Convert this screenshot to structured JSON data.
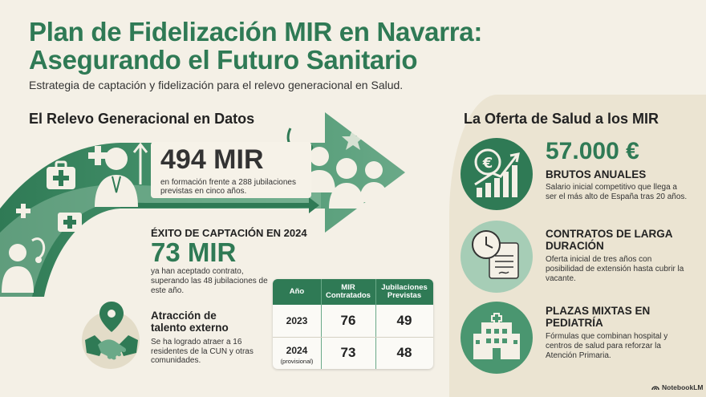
{
  "header": {
    "title_line1": "Plan de Fidelización MIR en Navarra:",
    "title_line2": "Asegurando el Futuro Sanitario",
    "subtitle": "Estrategia de captación y fidelización para el relevo generacional en Salud."
  },
  "left": {
    "section_title": "El Relevo Generacional en Datos",
    "stat1": {
      "value": "494 MIR",
      "desc": "en formación frente a 288 jubilaciones previstas en cinco años."
    },
    "stat2": {
      "heading": "ÉXITO DE CAPTACIÓN EN 2024",
      "value": "73 MIR",
      "desc": "ya han aceptado contrato, superando las 48 jubilaciones de este año."
    },
    "talent": {
      "title": "Atracción de talento externo",
      "desc": "Se ha logrado atraer a 16 residentes de la CUN y otras comunidades."
    },
    "table": {
      "headers": [
        "Año",
        "MIR Contratados",
        "Jubilaciones Previstas"
      ],
      "rows": [
        {
          "year": "2023",
          "note": "",
          "mir": "76",
          "jub": "49"
        },
        {
          "year": "2024",
          "note": "(provisional)",
          "mir": "73",
          "jub": "48"
        }
      ]
    }
  },
  "right": {
    "section_title": "La Oferta de Salud a los MIR",
    "items": [
      {
        "big": "57.000 €",
        "heading": "BRUTOS ANUALES",
        "desc": "Salario inicial competitivo que llega a ser el más alto de España tras 20 años."
      },
      {
        "heading": "CONTRATOS DE LARGA DURACIÓN",
        "desc": "Oferta inicial de tres años con posibilidad de extensión hasta cubrir la vacante."
      },
      {
        "heading": "PLAZAS MIXTAS EN PEDIATRÍA",
        "desc": "Fórmulas que combinan hospital y centros de salud para reforzar la Atención Primaria."
      }
    ]
  },
  "brand": "NotebookLM",
  "colors": {
    "primary": "#2f7a55",
    "light": "#8fc0a4",
    "background": "#f4f0e6"
  },
  "icons": [
    "medical-kit-icon",
    "doctor-icon",
    "stethoscope-icon",
    "location-pin-icon",
    "handshake-icon",
    "euro-growth-icon",
    "clock-contract-icon",
    "hospital-icon"
  ]
}
